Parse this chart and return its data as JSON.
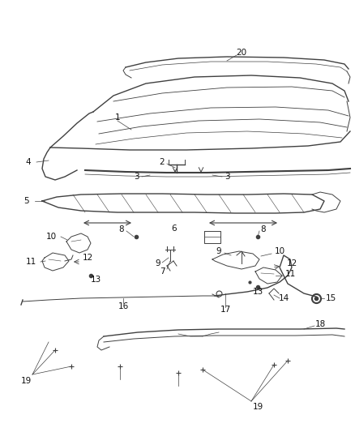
{
  "bg_color": "#ffffff",
  "line_color": "#404040",
  "label_color": "#111111",
  "fig_width": 4.38,
  "fig_height": 5.33,
  "dpi": 100
}
